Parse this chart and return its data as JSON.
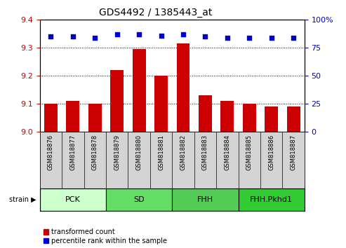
{
  "title": "GDS4492 / 1385443_at",
  "samples": [
    "GSM818876",
    "GSM818877",
    "GSM818878",
    "GSM818879",
    "GSM818880",
    "GSM818881",
    "GSM818882",
    "GSM818883",
    "GSM818884",
    "GSM818885",
    "GSM818886",
    "GSM818887"
  ],
  "bar_values": [
    9.1,
    9.11,
    9.1,
    9.22,
    9.295,
    9.2,
    9.315,
    9.13,
    9.11,
    9.1,
    9.09,
    9.09
  ],
  "percentile_values": [
    85,
    85,
    84,
    87,
    87,
    86,
    87,
    85,
    84,
    84,
    84,
    84
  ],
  "bar_color": "#cc0000",
  "dot_color": "#0000cc",
  "ylim_left": [
    9.0,
    9.4
  ],
  "ylim_right": [
    0,
    100
  ],
  "yticks_left": [
    9.0,
    9.1,
    9.2,
    9.3,
    9.4
  ],
  "yticks_right": [
    0,
    25,
    50,
    75,
    100
  ],
  "groups": [
    {
      "label": "PCK",
      "start": 0,
      "end": 3,
      "color": "#ccffcc"
    },
    {
      "label": "SD",
      "start": 3,
      "end": 6,
      "color": "#66dd66"
    },
    {
      "label": "FHH",
      "start": 6,
      "end": 9,
      "color": "#55cc55"
    },
    {
      "label": "FHH.Pkhd1",
      "start": 9,
      "end": 12,
      "color": "#33cc33"
    }
  ],
  "strain_label": "strain",
  "legend_bar_label": "transformed count",
  "legend_dot_label": "percentile rank within the sample",
  "tick_label_color_left": "#cc0000",
  "tick_label_color_right": "#0000cc",
  "sample_box_color": "#d4d4d4",
  "title_fontsize": 10,
  "axis_fontsize": 8,
  "sample_fontsize": 6,
  "group_fontsize": 8,
  "legend_fontsize": 7
}
